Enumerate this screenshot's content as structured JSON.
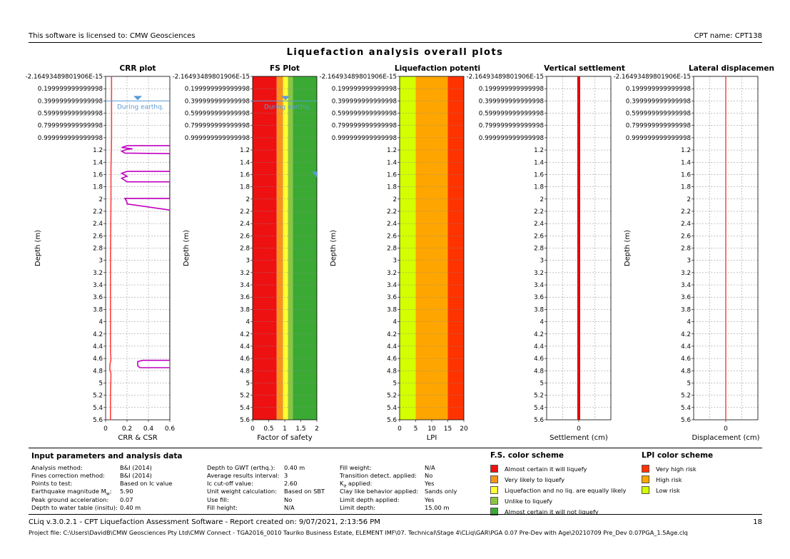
{
  "header": {
    "license": "This software is licensed to: CMW Geosciences",
    "cpt_name": "CPT name: CPT138",
    "title": "Liquefaction analysis overall plots"
  },
  "colors": {
    "crr_line": "#c000c0",
    "csr_line": "#ff4040",
    "gwt_marker": "#5b9bd5",
    "fs_red": "#ee1111",
    "fs_orange": "#f7941d",
    "fs_yellow": "#ffff33",
    "fs_lightgreen": "#8cc63f",
    "fs_green": "#3aaa35",
    "lpi_yellow": "#d4ff00",
    "lpi_orange": "#ffa500",
    "lpi_red": "#ff3300"
  },
  "chart_data": [
    {
      "type": "line",
      "title": "CRR plot",
      "xlabel": "CRR & CSR",
      "ylabel": "Depth (m)",
      "xlim": [
        0,
        0.6
      ],
      "ylim": [
        5.6,
        -2.16493489801906e-15
      ],
      "x_ticks": [
        "0",
        "0.2",
        "0.4",
        "0.6"
      ],
      "annotations": [
        "During earthq."
      ],
      "grid": true,
      "series": [
        {
          "values_key": "crr_curve",
          "points": [
            [
              0.6,
              1.13
            ],
            [
              0.2,
              1.13
            ],
            [
              0.15,
              1.16
            ],
            [
              0.25,
              1.18
            ],
            [
              0.2,
              1.19
            ],
            [
              0.15,
              1.22
            ],
            [
              0.18,
              1.25
            ],
            [
              0.6,
              1.26
            ],
            [
              0.6,
              1.55
            ],
            [
              0.2,
              1.55
            ],
            [
              0.15,
              1.58
            ],
            [
              0.2,
              1.63
            ],
            [
              0.15,
              1.66
            ],
            [
              0.2,
              1.72
            ],
            [
              0.6,
              1.72
            ],
            [
              0.6,
              1.99
            ],
            [
              0.18,
              1.99
            ],
            [
              0.2,
              2.05
            ],
            [
              0.2,
              2.08
            ],
            [
              0.6,
              2.18
            ],
            [
              0.6,
              4.63
            ],
            [
              0.35,
              4.63
            ],
            [
              0.3,
              4.65
            ],
            [
              0.3,
              4.72
            ],
            [
              0.32,
              4.75
            ],
            [
              0.6,
              4.75
            ]
          ]
        },
        {
          "values_key": "csr_curve",
          "points": [
            [
              0.055,
              0
            ],
            [
              0.055,
              1.0
            ],
            [
              0.05,
              1.5
            ],
            [
              0.05,
              2.0
            ],
            [
              0.045,
              3.0
            ],
            [
              0.045,
              4.5
            ],
            [
              0.05,
              4.62
            ],
            [
              0.04,
              4.7
            ],
            [
              0.04,
              4.78
            ],
            [
              0.05,
              4.85
            ],
            [
              0.045,
              5.2
            ],
            [
              0.045,
              5.6
            ]
          ]
        }
      ]
    },
    {
      "type": "bar",
      "title": "FS Plot",
      "xlabel": "Factor of safety",
      "ylabel": "Depth (m)",
      "xlim": [
        0,
        2
      ],
      "ylim": [
        5.6,
        -2.16493489801906e-15
      ],
      "x_ticks": [
        "0",
        "0.5",
        "1",
        "1.5",
        "2"
      ],
      "annotations": [
        "During earthq."
      ],
      "bands": [
        [
          0,
          0.75
        ],
        [
          0.75,
          0.95
        ],
        [
          0.95,
          1.1
        ],
        [
          1.1,
          1.25
        ],
        [
          1.25,
          2.0
        ]
      ]
    },
    {
      "type": "bar",
      "title": "Liquefaction potenti",
      "xlabel": "LPI",
      "ylabel": "Depth (m)",
      "xlim": [
        0,
        20
      ],
      "ylim": [
        5.6,
        -2.16493489801906e-15
      ],
      "x_ticks": [
        "0",
        "5",
        "10",
        "15",
        "20"
      ],
      "bands": [
        [
          0,
          5
        ],
        [
          5,
          15
        ],
        [
          15,
          20
        ]
      ]
    },
    {
      "type": "line",
      "title": "Vertical settlement",
      "xlabel": "Settlement (cm)",
      "ylabel": "",
      "x_ticks": [
        "0"
      ],
      "ylim": [
        5.6,
        -2.16493489801906e-15
      ],
      "series": [
        {
          "points": [
            [
              0,
              0
            ],
            [
              0,
              5.6
            ]
          ]
        }
      ]
    },
    {
      "type": "line",
      "title": "Lateral displacemen",
      "xlabel": "Displacement (cm)",
      "ylabel": "Depth (m)",
      "x_ticks": [
        "0"
      ],
      "ylim": [
        5.6,
        -2.16493489801906e-15
      ],
      "series": [
        {
          "points": [
            [
              0,
              0
            ],
            [
              0,
              5.6
            ]
          ]
        }
      ]
    }
  ],
  "y_tick_labels": [
    "-2.16493489801906E-15",
    "0.199999999999998",
    "0.399999999999998",
    "0.599999999999998",
    "0.799999999999998",
    "0.999999999999998",
    "1.2",
    "1.4",
    "1.6",
    "1.8",
    "2",
    "2.2",
    "2.4",
    "2.6",
    "2.8",
    "3",
    "3.2",
    "3.4",
    "3.6",
    "3.8",
    "4",
    "4.2",
    "4.4",
    "4.6",
    "4.8",
    "5",
    "5.2",
    "5.4",
    "5.6"
  ],
  "params": {
    "title": "Input parameters and analysis data",
    "col1": [
      {
        "k": "Analysis method:",
        "v": "B&I (2014)"
      },
      {
        "k": "Fines correction method:",
        "v": "B&I (2014)"
      },
      {
        "k": "Points to test:",
        "v": "Based on Ic value"
      },
      {
        "k": "Earthquake magnitude M",
        "sub": "w",
        "tail": ":",
        "v": "5.90"
      },
      {
        "k": "Peak ground acceleration:",
        "v": "0.07"
      },
      {
        "k": "Depth to water table (insitu):",
        "v": "0.40 m"
      }
    ],
    "col2": [
      {
        "k": "Depth to GWT (erthq.):",
        "v": "0.40 m"
      },
      {
        "k": "Average results interval:",
        "v": "3"
      },
      {
        "k": "Ic cut-off value:",
        "v": "2.60"
      },
      {
        "k": "Unit weight calculation:",
        "v": "Based on SBT"
      },
      {
        "k": "Use fill:",
        "v": "No"
      },
      {
        "k": "Fill height:",
        "v": "N/A"
      }
    ],
    "col3": [
      {
        "k": "Fill weight:",
        "v": "N/A"
      },
      {
        "k": "Transition detect. applied:",
        "v": "No"
      },
      {
        "k": "K",
        "sub": "σ",
        "tail": " applied:",
        "v": "Yes"
      },
      {
        "k": "Clay like behavior applied:",
        "v": "Sands only"
      },
      {
        "k": "Limit depth applied:",
        "v": "Yes"
      },
      {
        "k": "Limit depth:",
        "v": "15.00 m"
      }
    ]
  },
  "fs_legend": {
    "title": "F.S. color scheme",
    "items": [
      {
        "label": "Almost certain it will liquefy",
        "color": "#ee1111"
      },
      {
        "label": "Very likely to liquefy",
        "color": "#f7941d"
      },
      {
        "label": "Liquefaction and no liq. are equally likely",
        "color": "#ffff33"
      },
      {
        "label": "Unlike to liquefy",
        "color": "#8cc63f"
      },
      {
        "label": "Almost certain it will not liquefy",
        "color": "#3aaa35"
      }
    ]
  },
  "lpi_legend": {
    "title": "LPI color scheme",
    "items": [
      {
        "label": "Very high risk",
        "color": "#ff3300"
      },
      {
        "label": "High risk",
        "color": "#ffa500"
      },
      {
        "label": "Low risk",
        "color": "#d4ff00"
      }
    ]
  },
  "footer": {
    "line1": "CLiq v.3.0.2.1 - CPT Liquefaction Assessment Software - Report created on: 9/07/2021, 2:13:56 PM",
    "page": "18",
    "line2": "Project file: C:\\Users\\DavidB\\CMW Geosciences Pty Ltd\\CMW Connect - TGA2016_0010 Tauriko Business Estate, ELEMENT IMF\\07. Technical\\Stage 4\\CLiq\\GAR\\PGA 0.07 Pre-Dev with Age\\20210709 Pre_Dev 0.07PGA_1.5Age.clq"
  }
}
